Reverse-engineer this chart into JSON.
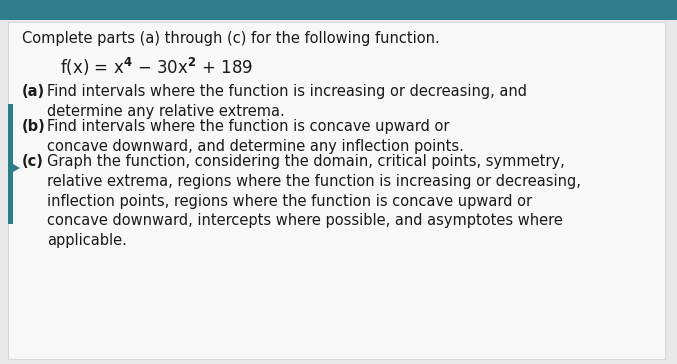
{
  "bg_color": "#e8e8e8",
  "card_color": "#f5f5f5",
  "top_bar_color": "#2d7d8a",
  "left_accent_color": "#2d7d8a",
  "title_text": "Complete parts (a) through (c) for the following function.",
  "part_a_label": "(a)",
  "part_a_text_bold": "(a)",
  "part_a_text": "Find intervals where the function is increasing or decreasing, and\ndetermine any relative extrema.",
  "part_b_label": "(b)",
  "part_b_text": "Find intervals where the function is concave upward or\nconcave downward, and determine any inflection points.",
  "part_c_label": "(c)",
  "part_c_text": "Graph the function, considering the domain, critical points, symmetry,\nrelative extrema, regions where the function is increasing or decreasing,\ninflection points, regions where the function is concave upward or\nconcave downward, intercepts where possible, and asymptotes where\napplicable.",
  "title_fontsize": 10.5,
  "function_fontsize": 12,
  "body_fontsize": 10.5,
  "label_fontsize": 10.5
}
